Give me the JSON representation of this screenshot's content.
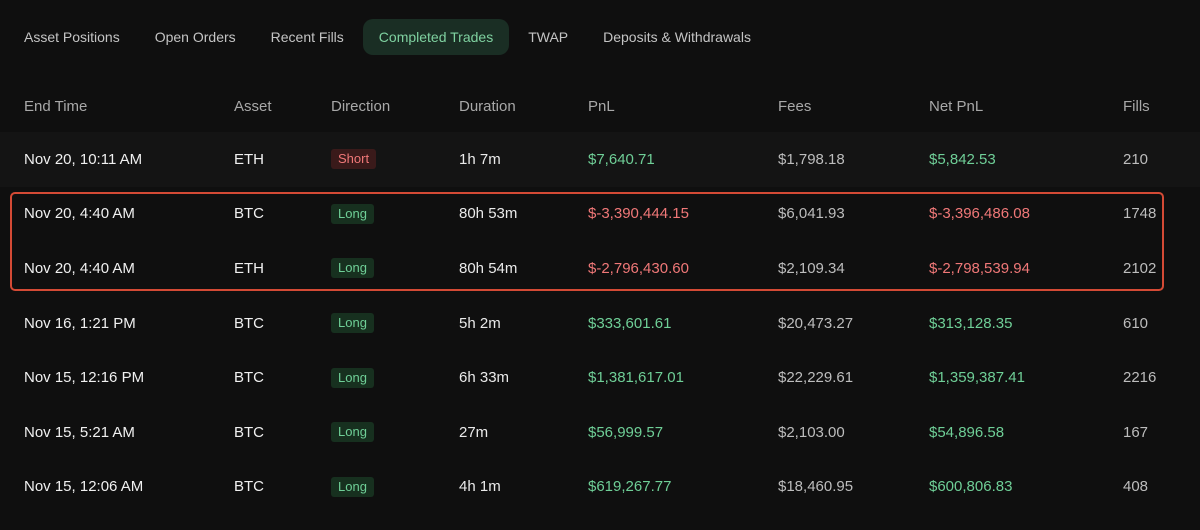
{
  "tabs": [
    {
      "label": "Asset Positions",
      "active": false
    },
    {
      "label": "Open Orders",
      "active": false
    },
    {
      "label": "Recent Fills",
      "active": false
    },
    {
      "label": "Completed Trades",
      "active": true
    },
    {
      "label": "TWAP",
      "active": false
    },
    {
      "label": "Deposits & Withdrawals",
      "active": false
    }
  ],
  "table": {
    "headers": {
      "end_time": "End Time",
      "asset": "Asset",
      "direction": "Direction",
      "duration": "Duration",
      "pnl": "PnL",
      "fees": "Fees",
      "net_pnl": "Net PnL",
      "fills": "Fills"
    },
    "rows": [
      {
        "end_time": "Nov 20, 10:11 AM",
        "asset": "ETH",
        "direction": "Short",
        "duration": "1h 7m",
        "pnl": "$7,640.71",
        "fees": "$1,798.18",
        "net_pnl": "$5,842.53",
        "fills": "210"
      },
      {
        "end_time": "Nov 20, 4:40 AM",
        "asset": "BTC",
        "direction": "Long",
        "duration": "80h 53m",
        "pnl": "$-3,390,444.15",
        "fees": "$6,041.93",
        "net_pnl": "$-3,396,486.08",
        "fills": "1748"
      },
      {
        "end_time": "Nov 20, 4:40 AM",
        "asset": "ETH",
        "direction": "Long",
        "duration": "80h 54m",
        "pnl": "$-2,796,430.60",
        "fees": "$2,109.34",
        "net_pnl": "$-2,798,539.94",
        "fills": "2102"
      },
      {
        "end_time": "Nov 16, 1:21 PM",
        "asset": "BTC",
        "direction": "Long",
        "duration": "5h 2m",
        "pnl": "$333,601.61",
        "fees": "$20,473.27",
        "net_pnl": "$313,128.35",
        "fills": "610"
      },
      {
        "end_time": "Nov 15, 12:16 PM",
        "asset": "BTC",
        "direction": "Long",
        "duration": "6h 33m",
        "pnl": "$1,381,617.01",
        "fees": "$22,229.61",
        "net_pnl": "$1,359,387.41",
        "fills": "2216"
      },
      {
        "end_time": "Nov 15, 5:21 AM",
        "asset": "BTC",
        "direction": "Long",
        "duration": "27m",
        "pnl": "$56,999.57",
        "fees": "$2,103.00",
        "net_pnl": "$54,896.58",
        "fills": "167"
      },
      {
        "end_time": "Nov 15, 12:06 AM",
        "asset": "BTC",
        "direction": "Long",
        "duration": "4h 1m",
        "pnl": "$619,267.77",
        "fees": "$18,460.95",
        "net_pnl": "$600,806.83",
        "fills": "408"
      }
    ]
  },
  "colors": {
    "positive": "#6fcf97",
    "negative": "#f07878",
    "highlight_border": "#d44a35",
    "active_tab_bg": "#1a2e24"
  }
}
